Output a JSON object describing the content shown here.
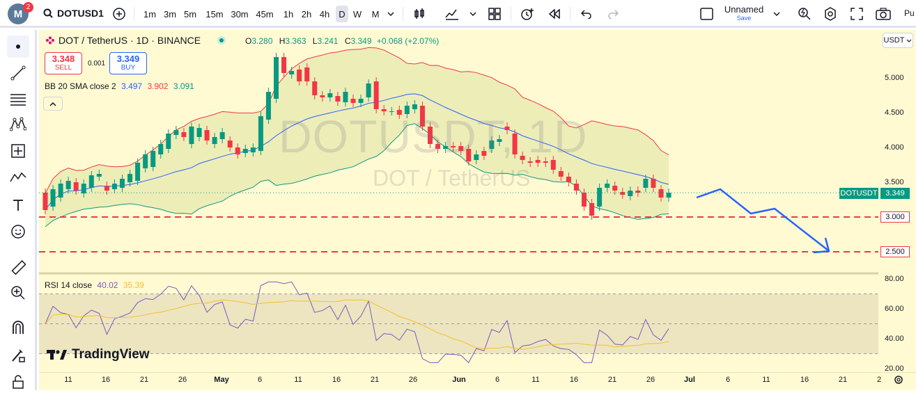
{
  "header": {
    "avatar_letter": "M",
    "notifications": "2",
    "symbol": "DOTUSD1",
    "timeframes": [
      "1m",
      "3m",
      "5m",
      "15m",
      "30m",
      "45m",
      "1h",
      "2h",
      "4h",
      "D",
      "W",
      "M"
    ],
    "active_timeframe": "D",
    "layout_name": "Unnamed",
    "save_label": "Save",
    "cut_label": "Pu"
  },
  "legend": {
    "title": "DOT / TetherUS · 1D · BINANCE",
    "open_label": "O",
    "open": "3.280",
    "high_label": "H",
    "high": "3.363",
    "low_label": "L",
    "low": "3.241",
    "close_label": "C",
    "close": "3.349",
    "change": "+0.068 (+2.07%)",
    "sell_price": "3.348",
    "sell_label": "SELL",
    "spread": "0.001",
    "buy_price": "3.349",
    "buy_label": "BUY",
    "bb_label": "BB 20 SMA close 2",
    "bb_basis": "3.497",
    "bb_upper": "3.902",
    "bb_lower": "3.091",
    "collapse_icon": "chevron-up",
    "rsi_label": "RSI 14 close",
    "rsi_value": "40.02",
    "rsi_ma": "35.39"
  },
  "watermark": {
    "main": "DOTUSDT, 1D",
    "sub": "DOT / TetherUS"
  },
  "branding": {
    "logo_text": "TradingView"
  },
  "price_axis": {
    "currency": "USDT",
    "labels": [
      "5.000",
      "4.500",
      "4.000",
      "3.500"
    ],
    "rsi_labels": [
      "80.00",
      "60.00",
      "40.00",
      "20.00"
    ],
    "symbol_badge": "DOTUSDT",
    "current_price": "3.349",
    "line_levels": [
      "3.000",
      "2.500"
    ]
  },
  "time_axis": {
    "labels": [
      "11",
      "16",
      "21",
      "26",
      "May",
      "6",
      "11",
      "16",
      "21",
      "26",
      "Jun",
      "6",
      "11",
      "16",
      "21",
      "26",
      "Jul",
      "6",
      "11",
      "16",
      "21",
      "2"
    ]
  },
  "colors": {
    "up": "#089981",
    "down": "#f23645",
    "bb_basis": "#2962ff",
    "bb_upper": "#f23645",
    "bb_lower": "#089981",
    "rsi": "#7e57c2",
    "rsi_ma": "#f7c02c",
    "background": "#fffad2"
  },
  "chart_data": {
    "type": "candlestick",
    "interval": "1D",
    "candles_approx": [
      [
        3.35,
        3.1
      ],
      [
        3.15,
        3.4
      ],
      [
        3.28,
        3.48
      ],
      [
        3.4,
        3.52
      ],
      [
        3.5,
        3.38
      ],
      [
        3.34,
        3.48
      ],
      [
        3.42,
        3.6
      ],
      [
        3.58,
        3.62
      ],
      [
        3.45,
        3.38
      ],
      [
        3.4,
        3.48
      ],
      [
        3.42,
        3.55
      ],
      [
        3.5,
        3.62
      ],
      [
        3.52,
        3.78
      ],
      [
        3.7,
        3.9
      ],
      [
        3.72,
        3.95
      ],
      [
        3.9,
        4.05
      ],
      [
        3.98,
        4.2
      ],
      [
        4.18,
        4.25
      ],
      [
        4.22,
        4.15
      ],
      [
        4.05,
        4.3
      ],
      [
        4.15,
        4.28
      ],
      [
        4.25,
        4.1
      ],
      [
        4.05,
        4.15
      ],
      [
        4.12,
        4.22
      ],
      [
        4.1,
        4.0
      ],
      [
        4.0,
        3.9
      ],
      [
        3.92,
        3.98
      ],
      [
        3.93,
        4.0
      ],
      [
        3.95,
        4.45
      ],
      [
        4.4,
        4.8
      ],
      [
        4.7,
        5.3
      ],
      [
        5.3,
        5.07
      ],
      [
        5.05,
        5.1
      ],
      [
        5.12,
        4.95
      ],
      [
        5.15,
        4.95
      ],
      [
        4.95,
        4.75
      ],
      [
        4.75,
        4.72
      ],
      [
        4.72,
        4.78
      ],
      [
        4.74,
        4.66
      ],
      [
        4.65,
        4.8
      ],
      [
        4.7,
        4.64
      ],
      [
        4.64,
        4.7
      ],
      [
        4.72,
        4.92
      ],
      [
        4.95,
        4.55
      ],
      [
        4.55,
        4.52
      ],
      [
        4.52,
        4.52
      ],
      [
        4.54,
        4.47
      ],
      [
        4.48,
        4.6
      ],
      [
        4.55,
        4.62
      ],
      [
        4.6,
        4.3
      ],
      [
        4.3,
        4.05
      ],
      [
        4.05,
        3.98
      ],
      [
        3.98,
        4.02
      ],
      [
        4.02,
        4.0
      ],
      [
        4.02,
        3.95
      ],
      [
        3.98,
        3.8
      ],
      [
        3.82,
        3.9
      ],
      [
        3.95,
        3.88
      ],
      [
        3.98,
        4.1
      ],
      [
        4.08,
        4.12
      ],
      [
        4.3,
        4.25
      ],
      [
        4.2,
        3.9
      ],
      [
        3.88,
        3.82
      ],
      [
        3.8,
        3.78
      ],
      [
        3.82,
        3.78
      ],
      [
        3.8,
        3.78
      ],
      [
        3.82,
        3.68
      ],
      [
        3.66,
        3.58
      ],
      [
        3.58,
        3.5
      ],
      [
        3.48,
        3.38
      ],
      [
        3.35,
        3.15
      ],
      [
        3.2,
        3.02
      ],
      [
        3.15,
        3.42
      ],
      [
        3.42,
        3.48
      ],
      [
        3.45,
        3.38
      ],
      [
        3.36,
        3.32
      ],
      [
        3.3,
        3.38
      ],
      [
        3.38,
        3.35
      ],
      [
        3.42,
        3.55
      ],
      [
        3.55,
        3.42
      ],
      [
        3.4,
        3.28
      ],
      [
        3.28,
        3.349
      ]
    ],
    "projection_path": [
      3.28,
      3.4,
      3.05,
      3.12,
      2.52
    ],
    "horizontal_lines": [
      3.0,
      2.5
    ],
    "rsi_levels": [
      70,
      50,
      30
    ],
    "y_axis_ticks": [
      5.0,
      4.5,
      4.0,
      3.5
    ],
    "rsi_axis_ticks": [
      80,
      60,
      40,
      20
    ]
  }
}
